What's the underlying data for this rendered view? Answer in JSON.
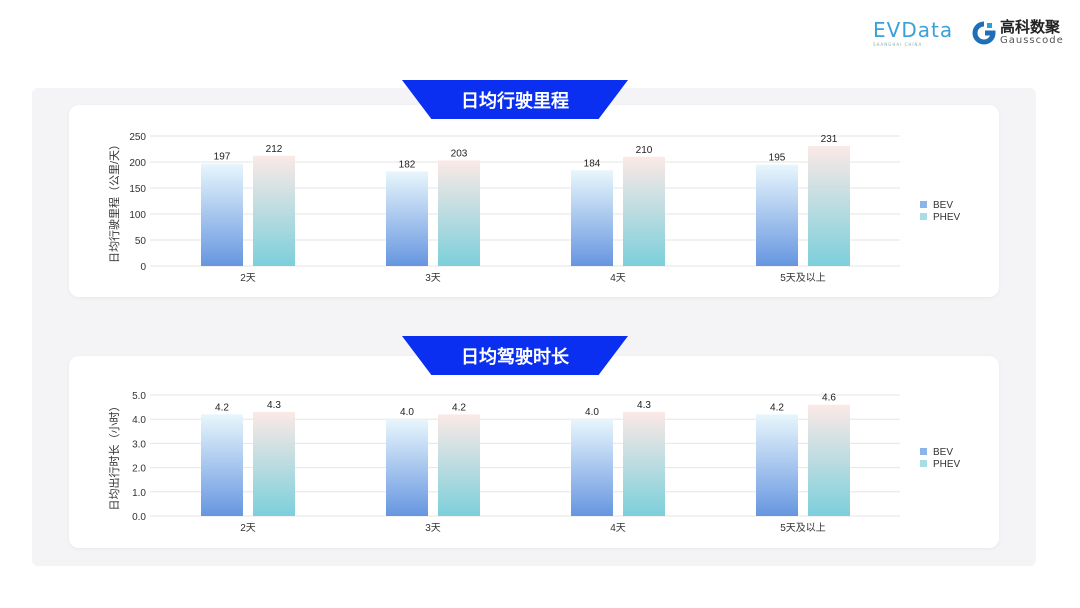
{
  "logos": {
    "evdata": "EVData",
    "evdata_sub": "SHANGHAI CHINA",
    "gauss_cn": "高科数聚",
    "gauss_en": "Gausscode"
  },
  "colors": {
    "banner": "#0b2ff0",
    "bev_top": "#e8f6fc",
    "bev_bottom": "#6696e0",
    "phev_top": "#fbe9e6",
    "phev_bottom": "#7ccfdb"
  },
  "chart_data": [
    {
      "type": "bar",
      "title": "日均行驶里程",
      "ylabel": "日均行驶里程（公里/天）",
      "categories": [
        "2天",
        "3天",
        "4天",
        "5天及以上"
      ],
      "ylim": [
        0,
        250
      ],
      "yticks": [
        "0",
        "50",
        "100",
        "150",
        "200",
        "250"
      ],
      "grid": true,
      "legend": "right",
      "series": [
        {
          "name": "BEV",
          "values": [
            197,
            182,
            184,
            195
          ],
          "labels": [
            "197",
            "182",
            "184",
            "195"
          ]
        },
        {
          "name": "PHEV",
          "values": [
            212,
            203,
            210,
            231
          ],
          "labels": [
            "212",
            "203",
            "210",
            "231"
          ]
        }
      ]
    },
    {
      "type": "bar",
      "title": "日均驾驶时长",
      "ylabel": "日均出行时长（小时）",
      "categories": [
        "2天",
        "3天",
        "4天",
        "5天及以上"
      ],
      "ylim": [
        0,
        5
      ],
      "yticks": [
        "0.0",
        "1.0",
        "2.0",
        "3.0",
        "4.0",
        "5.0"
      ],
      "grid": true,
      "legend": "right",
      "series": [
        {
          "name": "BEV",
          "values": [
            4.2,
            4.0,
            4.0,
            4.2
          ],
          "labels": [
            "4.2",
            "4.0",
            "4.0",
            "4.2"
          ]
        },
        {
          "name": "PHEV",
          "values": [
            4.3,
            4.2,
            4.3,
            4.6
          ],
          "labels": [
            "4.3",
            "4.2",
            "4.3",
            "4.6"
          ]
        }
      ]
    }
  ]
}
